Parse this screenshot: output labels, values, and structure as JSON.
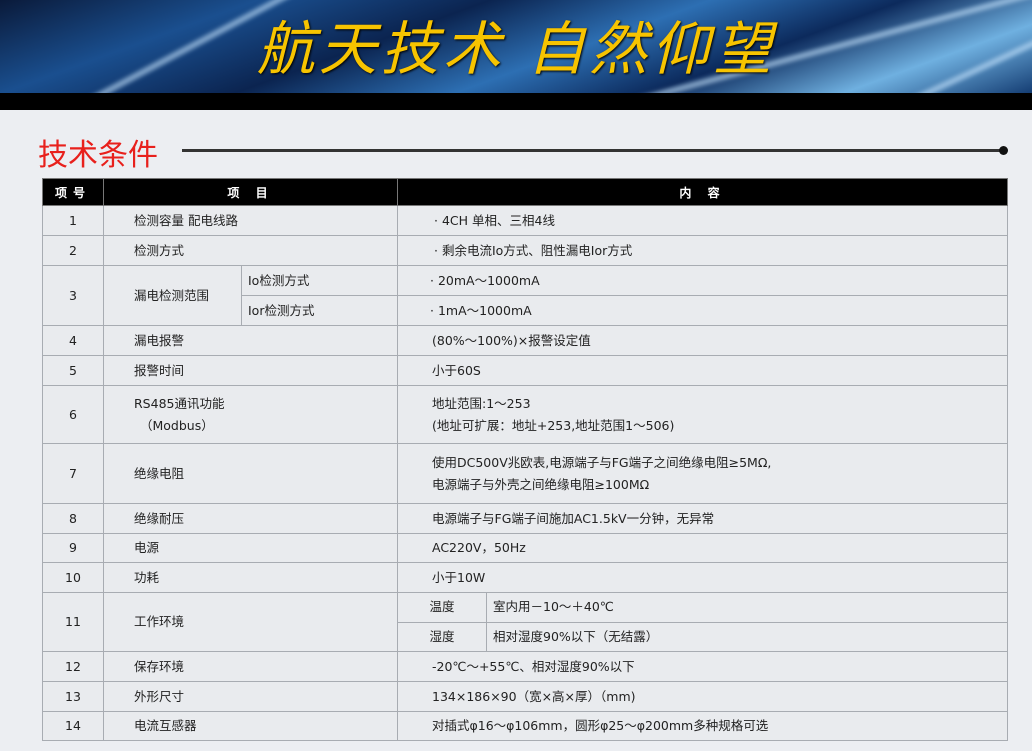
{
  "banner": {
    "slogan": "航天技术  自然仰望"
  },
  "section": {
    "title": "技术条件"
  },
  "table": {
    "headers": [
      "项号",
      "项 目",
      "内 容"
    ],
    "rows": [
      {
        "no": "1",
        "item": "检测容量  配电线路",
        "content": "· 4CH    单相、三相4线"
      },
      {
        "no": "2",
        "item": "检测方式",
        "content": "· 剩余电流Io方式、阻性漏电Ior方式"
      },
      {
        "no": "3",
        "item": "漏电检测范围",
        "subs": [
          {
            "label": "Io检测方式",
            "content": "·  20mA～1000mA"
          },
          {
            "label": "Ior检测方式",
            "content": "·  1mA～1000mA"
          }
        ]
      },
      {
        "no": "4",
        "item": "漏电报警",
        "content": "(80%～100%)×报警设定值"
      },
      {
        "no": "5",
        "item": "报警时间",
        "content": "小于60S"
      },
      {
        "no": "6",
        "item": "RS485通讯功能",
        "item2": "（Modbus）",
        "content": "地址范围:1～253",
        "content2": "(地址可扩展：地址+253,地址范围1～506)"
      },
      {
        "no": "7",
        "item": "绝缘电阻",
        "content": "使用DC500V兆欧表,电源端子与FG端子之间绝缘电阻≥5MΩ,",
        "content2": "电源端子与外壳之间绝缘电阻≥100MΩ"
      },
      {
        "no": "8",
        "item": "绝缘耐压",
        "content": "电源端子与FG端子间施加AC1.5kV一分钟，无异常"
      },
      {
        "no": "9",
        "item": "电源",
        "content": "AC220V，50Hz"
      },
      {
        "no": "10",
        "item": "功耗",
        "content": "小于10W"
      },
      {
        "no": "11",
        "item": "工作环境",
        "subs": [
          {
            "label": "温度",
            "content": "室内用－10～＋40℃"
          },
          {
            "label": "湿度",
            "content": "相对湿度90%以下（无结露）"
          }
        ]
      },
      {
        "no": "12",
        "item": "保存环境",
        "content": "-20℃～+55℃、相对湿度90%以下"
      },
      {
        "no": "13",
        "item": "外形尺寸",
        "content": "134×186×90（宽×高×厚）（mm)"
      },
      {
        "no": "14",
        "item": "电流互感器",
        "content": "对插式φ16～φ106mm，圆形φ25～φ200mm多种规格可选"
      }
    ]
  }
}
